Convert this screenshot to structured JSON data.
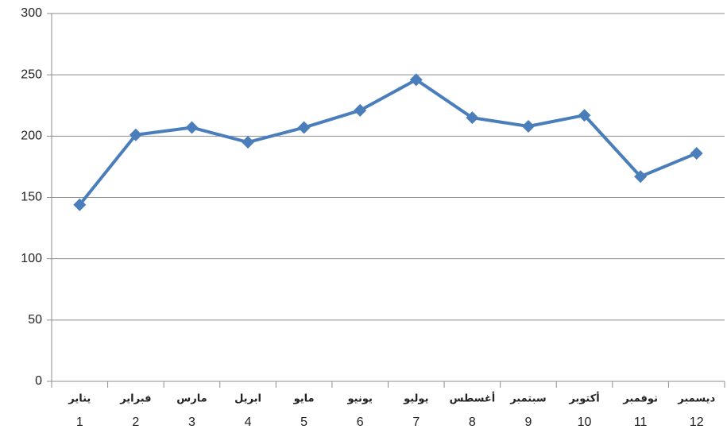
{
  "chart_data": {
    "type": "line",
    "categories": [
      "يناير",
      "فبراير",
      "مارس",
      "ابريل",
      "مايو",
      "يونيو",
      "يوليو",
      "أغسطس",
      "سبتمبر",
      "أكتوبر",
      "نوفمبر",
      "ديسمبر"
    ],
    "category_numbers": [
      1,
      2,
      3,
      4,
      5,
      6,
      7,
      8,
      9,
      10,
      11,
      12
    ],
    "series": [
      {
        "color": "#4a7ebb",
        "values": [
          144,
          201,
          207,
          195,
          207,
          221,
          246,
          215,
          208,
          217,
          167,
          186
        ]
      }
    ],
    "ylim": [
      0,
      300
    ],
    "yticks": [
      0,
      50,
      100,
      150,
      200,
      250,
      300
    ],
    "grid": true
  }
}
